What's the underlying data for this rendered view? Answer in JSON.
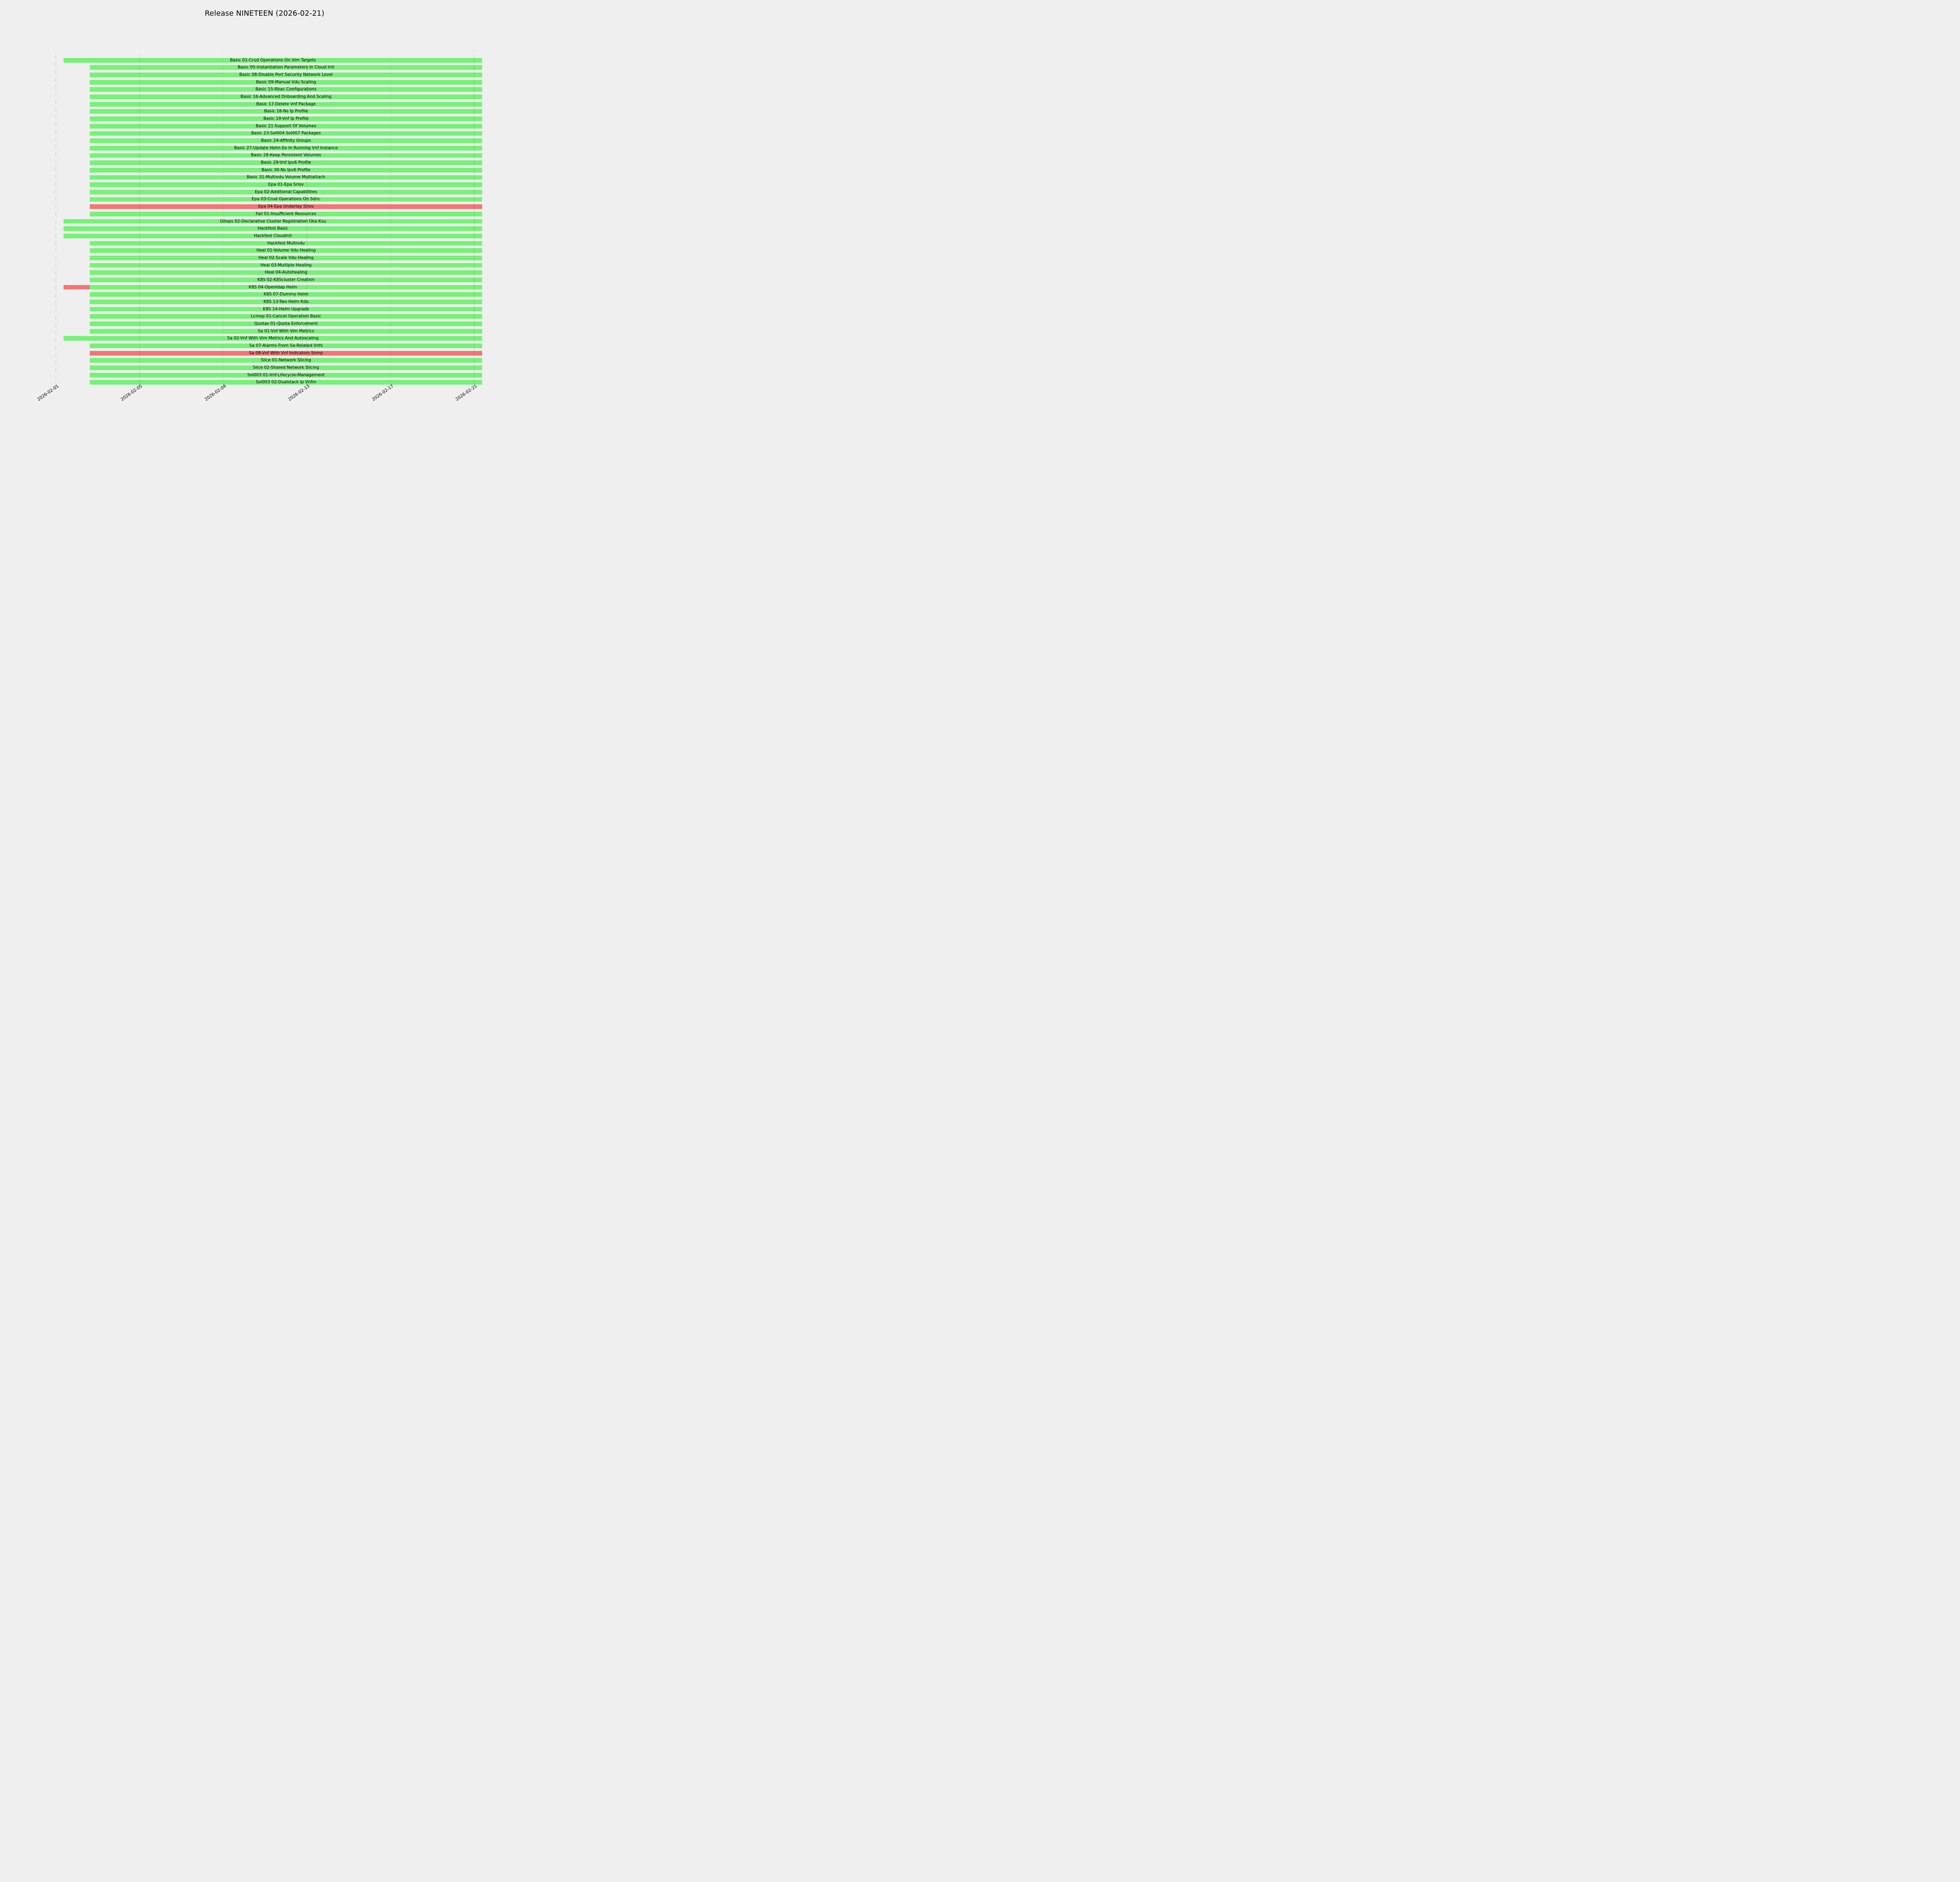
{
  "title": "Release NINETEEN (2026-02-21)",
  "colors": {
    "pass": "#76f276",
    "fail": "#f47575",
    "background": "#efefef",
    "grid_overlay": "rgba(0,0,0,0.075)",
    "date_marker": "#c6c6c6",
    "text": "#000000"
  },
  "axis": {
    "tick_labels": [
      "2026-02-01",
      "2026-02-05",
      "2026-02-09",
      "2026-02-13",
      "2026-02-17",
      "2026-02-21"
    ],
    "rotation_deg": 35,
    "dashed_marker_date": "2026-02-01"
  },
  "chart_data": {
    "type": "gantt",
    "title": "Release NINETEEN (2026-02-21)",
    "day_zero": "2026-02-01",
    "x_tick_dates": [
      "2026-02-01",
      "2026-02-05",
      "2026-02-09",
      "2026-02-13",
      "2026-02-17",
      "2026-02-21"
    ],
    "status_legend": {
      "pass": "green",
      "fail": "red"
    },
    "tasks": [
      {
        "label": "Basic 01-Crud Operations On Vim Targets",
        "segments": [
          {
            "start_day": 0.37,
            "end_day": 20.38,
            "status": "pass"
          }
        ]
      },
      {
        "label": "Basic 05-Instantiation Parameters In Cloud Init",
        "segments": [
          {
            "start_day": 1.62,
            "end_day": 20.38,
            "status": "pass"
          }
        ]
      },
      {
        "label": "Basic 08-Disable Port Security Network Level",
        "segments": [
          {
            "start_day": 1.62,
            "end_day": 20.38,
            "status": "pass"
          }
        ]
      },
      {
        "label": "Basic 09-Manual Vdu Scaling",
        "segments": [
          {
            "start_day": 1.62,
            "end_day": 20.38,
            "status": "pass"
          }
        ]
      },
      {
        "label": "Basic 15-Rbac Configurations",
        "segments": [
          {
            "start_day": 1.62,
            "end_day": 20.38,
            "status": "pass"
          }
        ]
      },
      {
        "label": "Basic 16-Advanced Onboarding And Scaling",
        "segments": [
          {
            "start_day": 1.62,
            "end_day": 20.38,
            "status": "pass"
          }
        ]
      },
      {
        "label": "Basic 17-Delete Vnf Package",
        "segments": [
          {
            "start_day": 1.62,
            "end_day": 20.38,
            "status": "pass"
          }
        ]
      },
      {
        "label": "Basic 18-Ns Ip Profile",
        "segments": [
          {
            "start_day": 1.62,
            "end_day": 20.38,
            "status": "pass"
          }
        ]
      },
      {
        "label": "Basic 19-Vnf Ip Profile",
        "segments": [
          {
            "start_day": 1.62,
            "end_day": 20.38,
            "status": "pass"
          }
        ]
      },
      {
        "label": "Basic 21-Support Of Volumes",
        "segments": [
          {
            "start_day": 1.62,
            "end_day": 20.38,
            "status": "pass"
          }
        ]
      },
      {
        "label": "Basic 23-Sol004 Sol007 Packages",
        "segments": [
          {
            "start_day": 1.62,
            "end_day": 20.38,
            "status": "pass"
          }
        ]
      },
      {
        "label": "Basic 24-Affinity Groups",
        "segments": [
          {
            "start_day": 1.62,
            "end_day": 20.38,
            "status": "pass"
          }
        ]
      },
      {
        "label": "Basic 27-Update Helm Ee In Running Vnf Instance",
        "segments": [
          {
            "start_day": 1.62,
            "end_day": 20.38,
            "status": "pass"
          }
        ]
      },
      {
        "label": "Basic 28-Keep Persistent Volumes",
        "segments": [
          {
            "start_day": 1.62,
            "end_day": 20.38,
            "status": "pass"
          }
        ]
      },
      {
        "label": "Basic 29-Vnf Ipv6 Profile",
        "segments": [
          {
            "start_day": 1.62,
            "end_day": 20.38,
            "status": "pass"
          }
        ]
      },
      {
        "label": "Basic 30-Ns Ipv6 Profile",
        "segments": [
          {
            "start_day": 1.62,
            "end_day": 20.38,
            "status": "pass"
          }
        ]
      },
      {
        "label": "Basic 31-Multivdu Volume Multiattach",
        "segments": [
          {
            "start_day": 1.62,
            "end_day": 20.38,
            "status": "pass"
          }
        ]
      },
      {
        "label": "Epa 01-Epa Sriov",
        "segments": [
          {
            "start_day": 1.62,
            "end_day": 20.38,
            "status": "pass"
          }
        ]
      },
      {
        "label": "Epa 02-Additional Capabilities",
        "segments": [
          {
            "start_day": 1.62,
            "end_day": 20.38,
            "status": "pass"
          }
        ]
      },
      {
        "label": "Epa 03-Crud Operations On Sdnc",
        "segments": [
          {
            "start_day": 1.62,
            "end_day": 20.38,
            "status": "pass"
          }
        ]
      },
      {
        "label": "Epa 04-Epa Underlay Sriov",
        "segments": [
          {
            "start_day": 1.62,
            "end_day": 20.38,
            "status": "fail"
          }
        ]
      },
      {
        "label": "Fail 01-Insufficient Resources",
        "segments": [
          {
            "start_day": 1.62,
            "end_day": 20.38,
            "status": "pass"
          }
        ]
      },
      {
        "label": "Gitops 02-Declarative Cluster Registration Oka Ksu",
        "segments": [
          {
            "start_day": 0.37,
            "end_day": 20.38,
            "status": "pass"
          }
        ]
      },
      {
        "label": "Hackfest Basic",
        "segments": [
          {
            "start_day": 0.37,
            "end_day": 20.38,
            "status": "pass"
          }
        ]
      },
      {
        "label": "Hackfest Cloudinit",
        "segments": [
          {
            "start_day": 0.37,
            "end_day": 20.38,
            "status": "pass"
          }
        ]
      },
      {
        "label": "Hackfest Multivdu",
        "segments": [
          {
            "start_day": 1.62,
            "end_day": 20.38,
            "status": "pass"
          }
        ]
      },
      {
        "label": "Heal 01-Volume Vdu Healing",
        "segments": [
          {
            "start_day": 1.62,
            "end_day": 20.38,
            "status": "pass"
          }
        ]
      },
      {
        "label": "Heal 02-Scale Vdu Healing",
        "segments": [
          {
            "start_day": 1.62,
            "end_day": 20.38,
            "status": "pass"
          }
        ]
      },
      {
        "label": "Heal 03-Multiple Healing",
        "segments": [
          {
            "start_day": 1.62,
            "end_day": 20.38,
            "status": "pass"
          }
        ]
      },
      {
        "label": "Heal 04-Autohealing",
        "segments": [
          {
            "start_day": 1.62,
            "end_day": 20.38,
            "status": "pass"
          }
        ]
      },
      {
        "label": "K8S 02-K8Scluster Creation",
        "segments": [
          {
            "start_day": 1.62,
            "end_day": 20.38,
            "status": "pass"
          }
        ]
      },
      {
        "label": "K8S 04-Openldap Helm",
        "segments": [
          {
            "start_day": 0.37,
            "end_day": 1.62,
            "status": "fail"
          },
          {
            "start_day": 1.62,
            "end_day": 20.38,
            "status": "pass"
          }
        ]
      },
      {
        "label": "K8S 07-Dummy Helm",
        "segments": [
          {
            "start_day": 1.62,
            "end_day": 20.38,
            "status": "pass"
          }
        ]
      },
      {
        "label": "K8S 13-Two Helm Kdu",
        "segments": [
          {
            "start_day": 1.62,
            "end_day": 20.38,
            "status": "pass"
          }
        ]
      },
      {
        "label": "K8S 14-Helm Upgrade",
        "segments": [
          {
            "start_day": 1.62,
            "end_day": 20.38,
            "status": "pass"
          }
        ]
      },
      {
        "label": "Lcmop 01-Cancel Operation Basic",
        "segments": [
          {
            "start_day": 1.62,
            "end_day": 20.38,
            "status": "pass"
          }
        ]
      },
      {
        "label": "Quotas 01-Quota Enforcement",
        "segments": [
          {
            "start_day": 1.62,
            "end_day": 20.38,
            "status": "pass"
          }
        ]
      },
      {
        "label": "Sa 01-Vnf With Vim Metrics",
        "segments": [
          {
            "start_day": 1.62,
            "end_day": 20.38,
            "status": "pass"
          }
        ]
      },
      {
        "label": "Sa 02-Vnf With Vim Metrics And Autoscaling",
        "segments": [
          {
            "start_day": 0.37,
            "end_day": 20.38,
            "status": "pass"
          }
        ]
      },
      {
        "label": "Sa 07-Alarms From Sa-Related Vnfs",
        "segments": [
          {
            "start_day": 1.62,
            "end_day": 20.38,
            "status": "pass"
          }
        ]
      },
      {
        "label": "Sa 08-Vnf With Vnf Indicators Snmp",
        "segments": [
          {
            "start_day": 1.62,
            "end_day": 20.38,
            "status": "fail"
          }
        ]
      },
      {
        "label": "Slice 01-Network Slicing",
        "segments": [
          {
            "start_day": 1.62,
            "end_day": 20.38,
            "status": "pass"
          }
        ]
      },
      {
        "label": "Slice 02-Shared Network Slicing",
        "segments": [
          {
            "start_day": 1.62,
            "end_day": 20.38,
            "status": "pass"
          }
        ]
      },
      {
        "label": "Sol003 01-Vnf-Lifecycle-Management",
        "segments": [
          {
            "start_day": 1.62,
            "end_day": 20.38,
            "status": "pass"
          }
        ]
      },
      {
        "label": "Sol003 02-Dualstack Ip Vnfm",
        "segments": [
          {
            "start_day": 1.62,
            "end_day": 20.38,
            "status": "pass"
          }
        ]
      }
    ]
  }
}
